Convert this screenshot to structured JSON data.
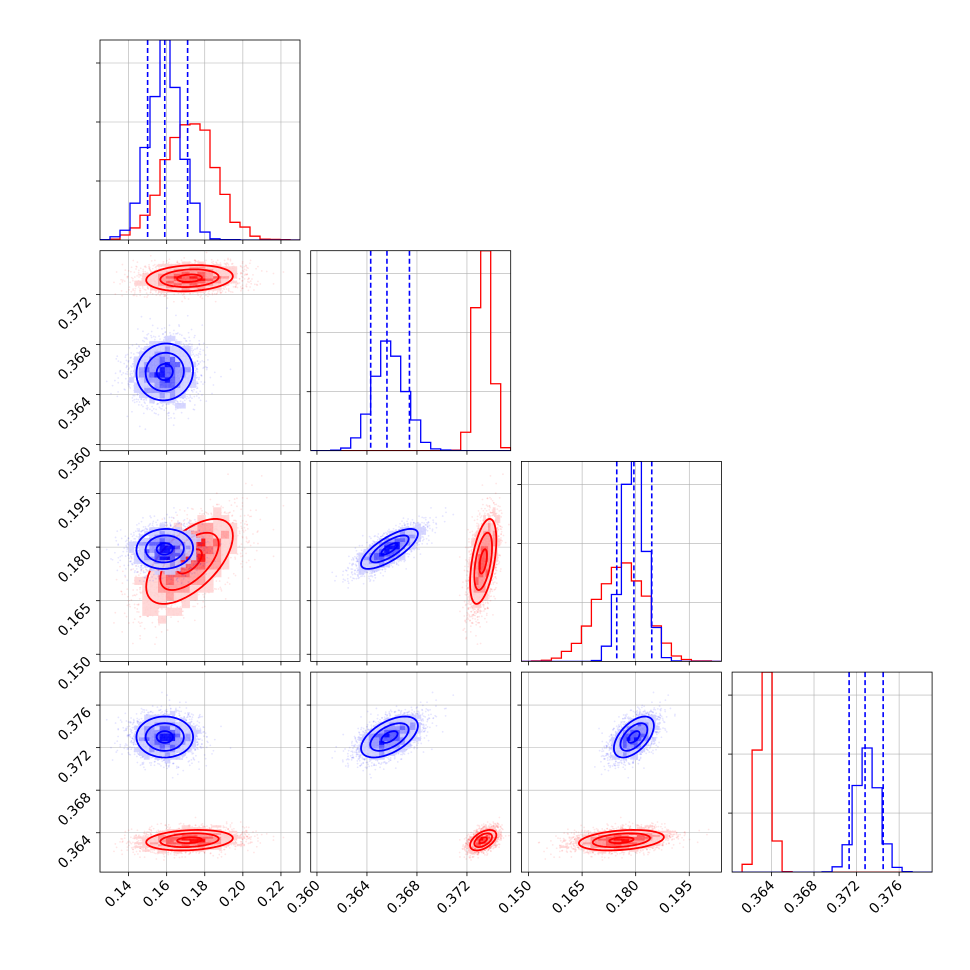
{
  "chart_data": {
    "type": "corner",
    "grid": true,
    "legend": "none",
    "colors": {
      "red": "#ff0000",
      "blue": "#0000ff"
    },
    "parameters": [
      {
        "range": [
          0.125,
          0.23
        ],
        "ticks": [
          0.14,
          0.16,
          0.18,
          0.2,
          0.22
        ],
        "tick_labels": [
          "0.14",
          "0.16",
          "0.18",
          "0.20",
          "0.22"
        ]
      },
      {
        "range": [
          0.3595,
          0.3755
        ],
        "ticks": [
          0.36,
          0.364,
          0.368,
          0.372
        ],
        "tick_labels": [
          "0.360",
          "0.364",
          "0.368",
          "0.372"
        ]
      },
      {
        "range": [
          0.148,
          0.204
        ],
        "ticks": [
          0.15,
          0.165,
          0.18,
          0.195
        ],
        "tick_labels": [
          "0.150",
          "0.165",
          "0.180",
          "0.195"
        ]
      },
      {
        "range": [
          0.3603,
          0.3791
        ],
        "ticks": [
          0.364,
          0.368,
          0.372,
          0.376
        ],
        "tick_labels": [
          "0.364",
          "0.368",
          "0.372",
          "0.376"
        ]
      }
    ],
    "series": [
      {
        "color": "#ff0000",
        "mean": [
          0.172,
          0.3733,
          0.176,
          0.3633
        ],
        "sd": [
          0.013,
          0.0006,
          0.0068,
          0.00055
        ],
        "correlations": [
          [
            0,
            2,
            0.6
          ],
          [
            1,
            2,
            0.5
          ],
          [
            1,
            3,
            0.5
          ],
          [
            2,
            3,
            0.3
          ],
          [
            0,
            3,
            0.2
          ],
          [
            0,
            1,
            0.15
          ]
        ]
      },
      {
        "color": "#0000ff",
        "mean": [
          0.159,
          0.3658,
          0.1795,
          0.373
        ],
        "sd": [
          0.0085,
          0.0013,
          0.0032,
          0.0011
        ],
        "correlations": [
          [
            1,
            2,
            0.75
          ],
          [
            1,
            3,
            0.55
          ],
          [
            2,
            3,
            0.55
          ],
          [
            0,
            2,
            0.05
          ],
          [
            0,
            1,
            0.05
          ]
        ],
        "quantiles": [
          [
            0.15,
            0.159,
            0.171
          ],
          [
            0.3643,
            0.3656,
            0.3674
          ],
          [
            0.1747,
            0.1795,
            0.1845
          ],
          [
            0.3713,
            0.3728,
            0.3745
          ]
        ]
      }
    ]
  }
}
